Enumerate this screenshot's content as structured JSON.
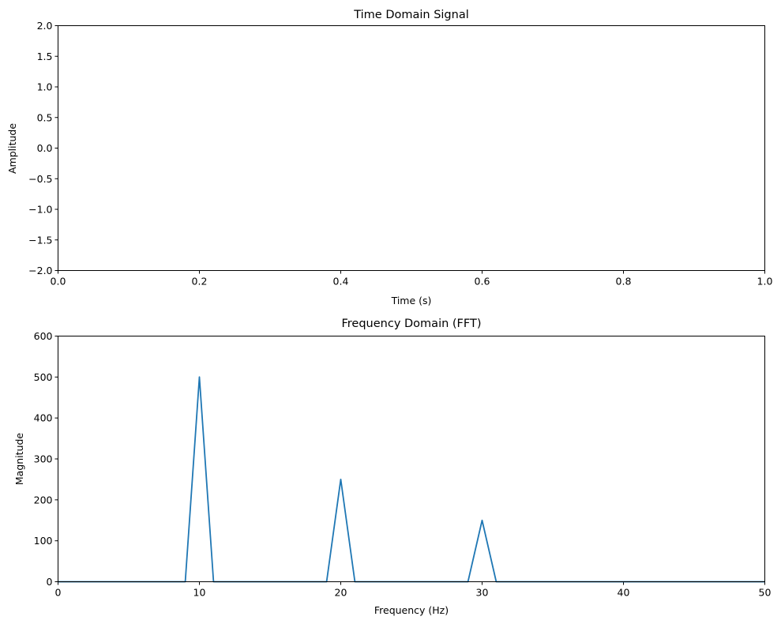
{
  "chart_data": [
    {
      "type": "line",
      "title": "Time Domain Signal",
      "xlabel": "Time (s)",
      "ylabel": "Amplitude",
      "xlim": [
        0.0,
        1.0
      ],
      "ylim": [
        -2.0,
        2.0
      ],
      "xticks": [
        "0.0",
        "0.2",
        "0.4",
        "0.6",
        "0.8",
        "1.0"
      ],
      "yticks": [
        "2.0",
        "1.5",
        "1.0",
        "0.5",
        "0.0",
        "−0.5",
        "−1.0",
        "−1.5",
        "−2.0"
      ],
      "grid": false,
      "series": []
    },
    {
      "type": "line",
      "title": "Frequency Domain (FFT)",
      "xlabel": "Frequency (Hz)",
      "ylabel": "Magnitude",
      "xlim": [
        0,
        50
      ],
      "ylim": [
        0,
        600
      ],
      "xticks": [
        "0",
        "10",
        "20",
        "30",
        "40",
        "50"
      ],
      "yticks": [
        "600",
        "500",
        "400",
        "300",
        "200",
        "100",
        "0"
      ],
      "grid": false,
      "color": "#1f77b4",
      "series": [
        {
          "x": [
            0,
            9,
            10,
            11,
            19,
            20,
            21,
            29,
            30,
            31,
            50
          ],
          "y": [
            0,
            0,
            500,
            0,
            0,
            250,
            0,
            0,
            150,
            0,
            0
          ]
        }
      ]
    }
  ]
}
